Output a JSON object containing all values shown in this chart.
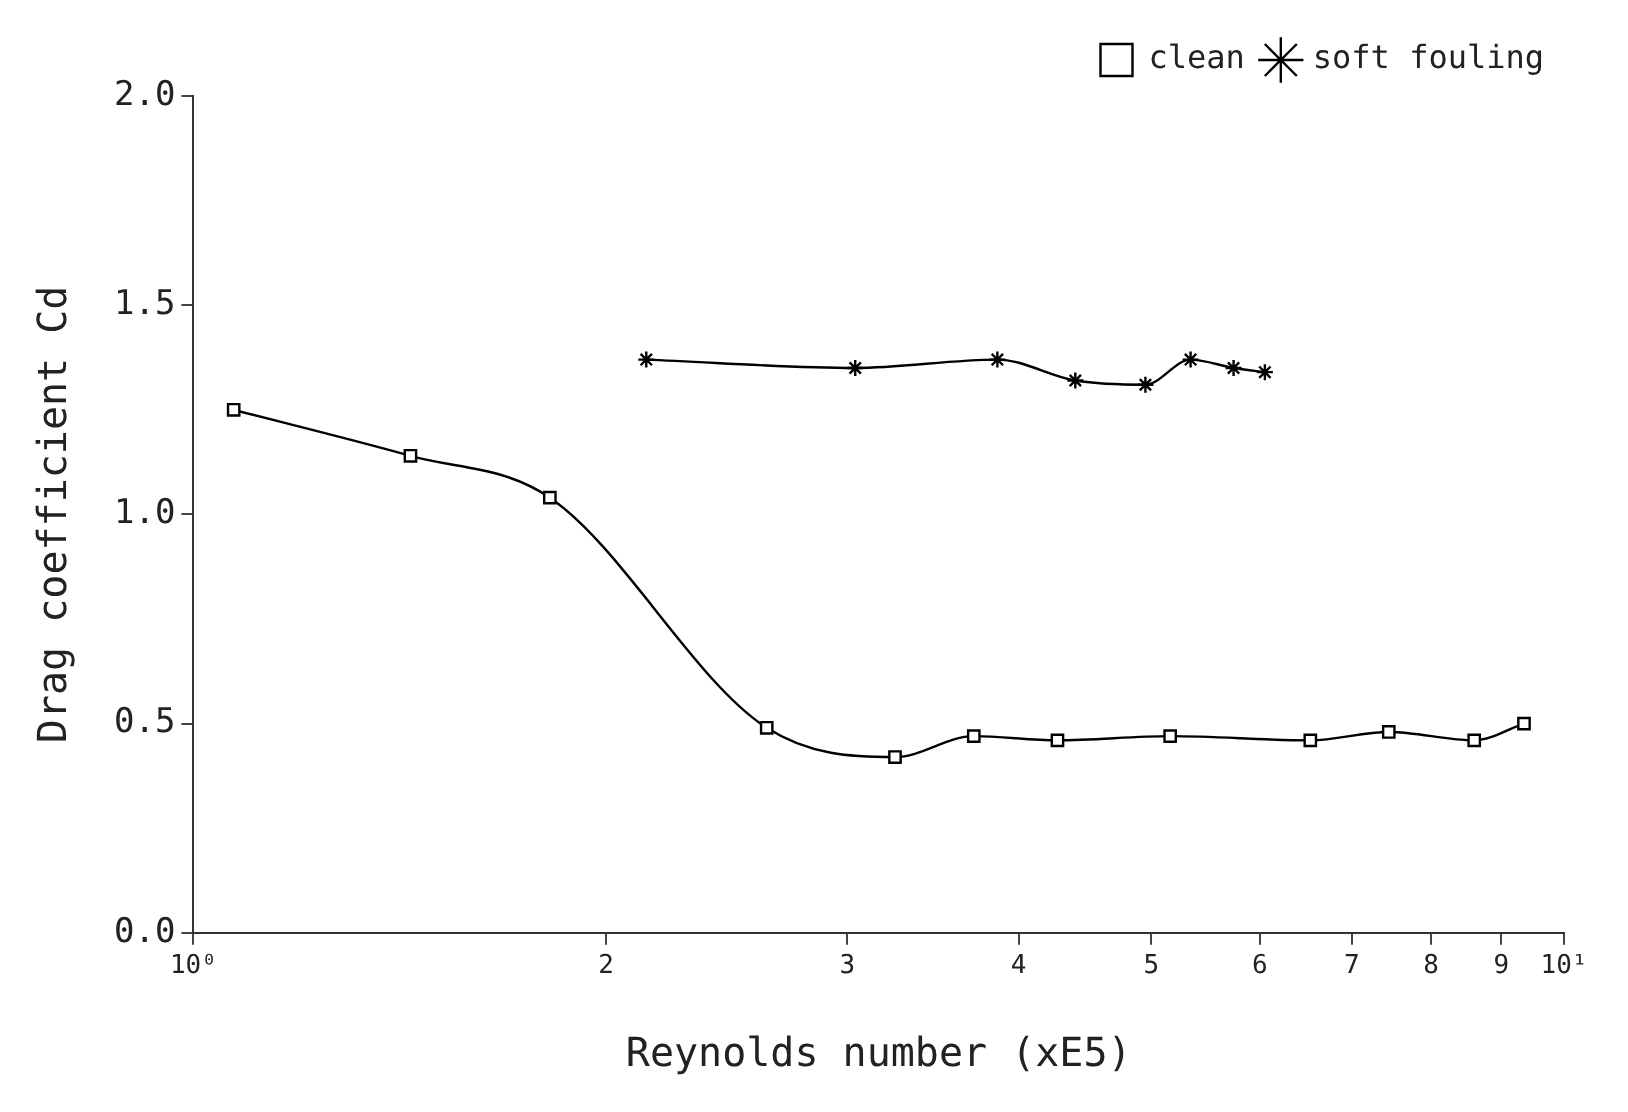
{
  "chart_data": {
    "type": "line",
    "xlabel": "Reynolds number (xE5)",
    "ylabel": "Drag coefficient Cd",
    "log": "x",
    "grid": false,
    "legend": "top right",
    "line_style": "solid",
    "xlim": [
      1,
      10
    ],
    "xticks": [
      {
        "value": 1,
        "label": "10⁰"
      },
      2,
      3,
      4,
      5,
      6,
      7,
      8,
      9,
      {
        "value": 10,
        "label": "10¹"
      }
    ],
    "ylim": [
      0,
      2
    ],
    "yticks": [
      {
        "value": 0,
        "label": "0.0"
      },
      {
        "value": 0.5,
        "label": "0.5"
      },
      {
        "value": 1,
        "label": "1.0"
      },
      {
        "value": 1.5,
        "label": "1.5"
      },
      {
        "value": 2,
        "label": "2.0"
      }
    ],
    "series": [
      {
        "name": "clean",
        "color": "#000000",
        "marker": "square",
        "x": [
          1.07,
          1.44,
          1.82,
          2.62,
          3.25,
          3.71,
          4.27,
          5.16,
          6.53,
          7.45,
          8.6,
          9.35
        ],
        "values": [
          1.25,
          1.14,
          1.04,
          0.49,
          0.42,
          0.47,
          0.46,
          0.47,
          0.46,
          0.48,
          0.46,
          0.5
        ]
      },
      {
        "name": "soft fouling",
        "color": "#000000",
        "marker": "cross",
        "x": [
          2.14,
          3.04,
          3.86,
          4.4,
          4.95,
          5.34,
          5.74,
          6.05
        ],
        "values": [
          1.37,
          1.35,
          1.37,
          1.32,
          1.31,
          1.37,
          1.35,
          1.34
        ]
      }
    ]
  }
}
